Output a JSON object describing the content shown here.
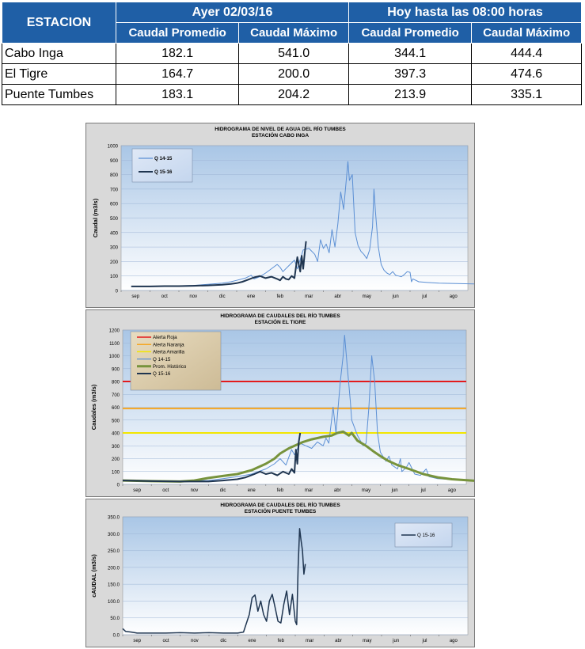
{
  "table": {
    "station_header": "ESTACION",
    "group_yesterday": "Ayer 02/03/16",
    "group_today": "Hoy hasta las 08:00 horas",
    "sub_headers": [
      "Caudal Promedio",
      "Caudal Máximo",
      "Caudal Promedio",
      "Caudal Máximo"
    ],
    "rows": [
      {
        "station": "Cabo Inga",
        "values": [
          "182.1",
          "541.0",
          "344.1",
          "444.4"
        ]
      },
      {
        "station": "El Tigre",
        "values": [
          "164.7",
          "200.0",
          "397.3",
          "474.6"
        ]
      },
      {
        "station": "Puente Tumbes",
        "values": [
          "183.1",
          "204.2",
          "213.9",
          "335.1"
        ]
      }
    ]
  },
  "colors": {
    "header_blue": "#1f5fa6",
    "plot_gradient_top": "#a9c6e6",
    "plot_gradient_bottom": "#ffffff",
    "q1415": "#5b8fd4",
    "q1516": "#1f3550",
    "historic": "#77933c",
    "alerta_roja": "#e31a1c",
    "alerta_naranja": "#f5a623",
    "alerta_amarilla": "#f2e600"
  },
  "chart_data": [
    {
      "type": "line",
      "title": "HIDROGRAMA DE NIVEL DE AGUA DEL RÍO TUMBES",
      "subtitle": "ESTACIÓN CABO INGA",
      "ylabel": "Caudal (m3/s)",
      "xlabel": "",
      "x_ticks": [
        "sep",
        "oct",
        "nov",
        "dic",
        "ene",
        "feb",
        "mar",
        "abr",
        "may",
        "jun",
        "jul",
        "ago"
      ],
      "ylim": [
        0,
        1000
      ],
      "y_ticks": [
        "0",
        "100",
        "200",
        "300",
        "400",
        "500",
        "600",
        "700",
        "800",
        "900",
        "1000"
      ],
      "grid": true,
      "legend": "top-left",
      "series": [
        {
          "name": "Q 14-15",
          "color": "#5b8fd4",
          "width": 1,
          "points": [
            [
              0.35,
              28
            ],
            [
              1,
              28
            ],
            [
              1.5,
              30
            ],
            [
              2,
              32
            ],
            [
              2.5,
              35
            ],
            [
              3,
              42
            ],
            [
              3.5,
              50
            ],
            [
              3.8,
              60
            ],
            [
              4,
              70
            ],
            [
              4.3,
              85
            ],
            [
              4.5,
              105
            ],
            [
              4.6,
              80
            ],
            [
              4.8,
              95
            ],
            [
              5,
              120
            ],
            [
              5.2,
              150
            ],
            [
              5.4,
              180
            ],
            [
              5.5,
              160
            ],
            [
              5.6,
              130
            ],
            [
              5.8,
              170
            ],
            [
              6,
              210
            ],
            [
              6.1,
              150
            ],
            [
              6.3,
              280
            ],
            [
              6.5,
              290
            ],
            [
              6.7,
              250
            ],
            [
              6.8,
              200
            ],
            [
              6.9,
              350
            ],
            [
              7,
              290
            ],
            [
              7.1,
              320
            ],
            [
              7.2,
              260
            ],
            [
              7.3,
              420
            ],
            [
              7.4,
              300
            ],
            [
              7.5,
              460
            ],
            [
              7.6,
              680
            ],
            [
              7.7,
              560
            ],
            [
              7.8,
              780
            ],
            [
              7.85,
              890
            ],
            [
              7.9,
              760
            ],
            [
              8,
              800
            ],
            [
              8.1,
              400
            ],
            [
              8.2,
              310
            ],
            [
              8.3,
              270
            ],
            [
              8.4,
              250
            ],
            [
              8.5,
              220
            ],
            [
              8.6,
              280
            ],
            [
              8.7,
              440
            ],
            [
              8.75,
              700
            ],
            [
              8.8,
              550
            ],
            [
              8.9,
              300
            ],
            [
              9,
              180
            ],
            [
              9.1,
              140
            ],
            [
              9.2,
              120
            ],
            [
              9.3,
              110
            ],
            [
              9.4,
              130
            ],
            [
              9.5,
              105
            ],
            [
              9.6,
              100
            ],
            [
              9.7,
              95
            ],
            [
              9.8,
              110
            ],
            [
              9.9,
              130
            ],
            [
              10,
              125
            ],
            [
              10.05,
              60
            ],
            [
              10.1,
              80
            ],
            [
              10.2,
              70
            ],
            [
              10.3,
              60
            ],
            [
              10.6,
              55
            ],
            [
              11,
              50
            ],
            [
              12.3,
              45
            ]
          ]
        },
        {
          "name": "Q 15-16",
          "color": "#1f3550",
          "width": 2,
          "points": [
            [
              0.35,
              28
            ],
            [
              1,
              28
            ],
            [
              1.5,
              30
            ],
            [
              2,
              30
            ],
            [
              2.5,
              32
            ],
            [
              3,
              35
            ],
            [
              3.5,
              40
            ],
            [
              3.8,
              45
            ],
            [
              4,
              50
            ],
            [
              4.2,
              60
            ],
            [
              4.4,
              75
            ],
            [
              4.6,
              90
            ],
            [
              4.8,
              100
            ],
            [
              5,
              85
            ],
            [
              5.2,
              95
            ],
            [
              5.4,
              80
            ],
            [
              5.5,
              70
            ],
            [
              5.6,
              95
            ],
            [
              5.7,
              80
            ],
            [
              5.8,
              75
            ],
            [
              5.9,
              100
            ],
            [
              6,
              85
            ],
            [
              6.1,
              230
            ],
            [
              6.2,
              130
            ],
            [
              6.25,
              240
            ],
            [
              6.3,
              150
            ],
            [
              6.35,
              250
            ],
            [
              6.4,
              340
            ]
          ]
        }
      ]
    },
    {
      "type": "line",
      "title": "HIDROGRAMA DE CAUDALES  DEL RÍO TUMBES",
      "subtitle": "ESTACIÓN EL TIGRE",
      "ylabel": "Caudales (m3/s)",
      "xlabel": "",
      "x_ticks": [
        "sep",
        "oct",
        "nov",
        "dic",
        "ene",
        "feb",
        "mar",
        "abr",
        "may",
        "jun",
        "jul",
        "ago"
      ],
      "ylim": [
        0,
        1200
      ],
      "y_ticks": [
        "0",
        "100",
        "200",
        "300",
        "400",
        "500",
        "600",
        "700",
        "800",
        "900",
        "1000",
        "1100",
        "1200"
      ],
      "grid": true,
      "legend": "top-left",
      "thresholds": [
        {
          "name": "Alerta Roja",
          "value": 800,
          "color": "#e31a1c"
        },
        {
          "name": "Alerta Naranja",
          "value": 590,
          "color": "#f5a623"
        },
        {
          "name": "Alerta Amarilla",
          "value": 400,
          "color": "#f2e600"
        }
      ],
      "series": [
        {
          "name": "Q 14-15",
          "color": "#5b8fd4",
          "width": 1,
          "points": [
            [
              0,
              28
            ],
            [
              1,
              26
            ],
            [
              2,
              25
            ],
            [
              3,
              30
            ],
            [
              3.5,
              45
            ],
            [
              4,
              60
            ],
            [
              4.5,
              80
            ],
            [
              5,
              120
            ],
            [
              5.3,
              160
            ],
            [
              5.5,
              200
            ],
            [
              5.7,
              150
            ],
            [
              5.9,
              270
            ],
            [
              6,
              230
            ],
            [
              6.2,
              320
            ],
            [
              6.4,
              300
            ],
            [
              6.6,
              280
            ],
            [
              6.8,
              330
            ],
            [
              7,
              300
            ],
            [
              7.1,
              360
            ],
            [
              7.2,
              320
            ],
            [
              7.35,
              600
            ],
            [
              7.45,
              400
            ],
            [
              7.6,
              800
            ],
            [
              7.7,
              1000
            ],
            [
              7.75,
              1160
            ],
            [
              7.85,
              900
            ],
            [
              7.95,
              650
            ],
            [
              8,
              500
            ],
            [
              8.2,
              380
            ],
            [
              8.4,
              300
            ],
            [
              8.5,
              320
            ],
            [
              8.6,
              600
            ],
            [
              8.7,
              1000
            ],
            [
              8.8,
              800
            ],
            [
              8.9,
              400
            ],
            [
              9,
              250
            ],
            [
              9.2,
              180
            ],
            [
              9.3,
              220
            ],
            [
              9.4,
              150
            ],
            [
              9.6,
              120
            ],
            [
              9.7,
              200
            ],
            [
              9.75,
              100
            ],
            [
              9.9,
              130
            ],
            [
              10,
              170
            ],
            [
              10.2,
              80
            ],
            [
              10.4,
              70
            ],
            [
              10.6,
              120
            ],
            [
              10.7,
              60
            ],
            [
              11,
              45
            ],
            [
              12.3,
              25
            ]
          ]
        },
        {
          "name": "Prom. Histórico",
          "color": "#77933c",
          "width": 3,
          "points": [
            [
              0,
              30
            ],
            [
              1,
              25
            ],
            [
              2,
              22
            ],
            [
              2.5,
              30
            ],
            [
              3,
              50
            ],
            [
              3.5,
              65
            ],
            [
              4,
              80
            ],
            [
              4.5,
              110
            ],
            [
              5,
              160
            ],
            [
              5.3,
              200
            ],
            [
              5.5,
              240
            ],
            [
              5.8,
              280
            ],
            [
              6,
              300
            ],
            [
              6.3,
              330
            ],
            [
              6.6,
              350
            ],
            [
              7,
              370
            ],
            [
              7.3,
              380
            ],
            [
              7.5,
              400
            ],
            [
              7.7,
              410
            ],
            [
              7.9,
              380
            ],
            [
              8,
              400
            ],
            [
              8.2,
              340
            ],
            [
              8.5,
              300
            ],
            [
              8.8,
              250
            ],
            [
              9,
              220
            ],
            [
              9.3,
              180
            ],
            [
              9.6,
              150
            ],
            [
              10,
              120
            ],
            [
              10.5,
              80
            ],
            [
              11,
              55
            ],
            [
              11.5,
              40
            ],
            [
              12.3,
              28
            ]
          ]
        },
        {
          "name": "Q 15-16",
          "color": "#1f3550",
          "width": 2,
          "points": [
            [
              0,
              30
            ],
            [
              1,
              25
            ],
            [
              2,
              22
            ],
            [
              3,
              22
            ],
            [
              3.5,
              30
            ],
            [
              4,
              40
            ],
            [
              4.3,
              55
            ],
            [
              4.6,
              80
            ],
            [
              4.8,
              100
            ],
            [
              5,
              80
            ],
            [
              5.2,
              90
            ],
            [
              5.4,
              70
            ],
            [
              5.6,
              100
            ],
            [
              5.8,
              80
            ],
            [
              5.9,
              120
            ],
            [
              6,
              90
            ],
            [
              6.05,
              270
            ],
            [
              6.1,
              160
            ],
            [
              6.15,
              330
            ],
            [
              6.2,
              400
            ]
          ]
        }
      ]
    },
    {
      "type": "line",
      "title": "HIDROGRAMA DE CAUDALES DEL RÍO TUMBES",
      "subtitle": "ESTACIÓN PUENTE TUMBES",
      "ylabel": "cAUDAL  (m3/s)",
      "xlabel": "",
      "x_ticks": [
        "sep",
        "oct",
        "nov",
        "dic",
        "ene",
        "feb",
        "mar",
        "abr",
        "may",
        "jun",
        "jul",
        "ago"
      ],
      "ylim": [
        0,
        350
      ],
      "y_ticks": [
        "0.0",
        "50.0",
        "100.0",
        "150.0",
        "200.0",
        "250.0",
        "300.0",
        "350.0"
      ],
      "grid": true,
      "legend": "top-right",
      "series": [
        {
          "name": "Q 15-16",
          "color": "#1f3550",
          "width": 1.5,
          "points": [
            [
              0,
              18
            ],
            [
              0.1,
              10
            ],
            [
              0.3,
              8
            ],
            [
              0.5,
              5
            ],
            [
              1,
              5
            ],
            [
              1.5,
              5
            ],
            [
              2,
              6
            ],
            [
              2.5,
              5
            ],
            [
              3,
              6
            ],
            [
              3.5,
              5
            ],
            [
              4,
              5
            ],
            [
              4.2,
              8
            ],
            [
              4.4,
              60
            ],
            [
              4.5,
              110
            ],
            [
              4.6,
              118
            ],
            [
              4.7,
              70
            ],
            [
              4.8,
              100
            ],
            [
              4.9,
              60
            ],
            [
              5,
              40
            ],
            [
              5.1,
              100
            ],
            [
              5.2,
              120
            ],
            [
              5.3,
              80
            ],
            [
              5.4,
              40
            ],
            [
              5.5,
              35
            ],
            [
              5.6,
              90
            ],
            [
              5.7,
              130
            ],
            [
              5.8,
              60
            ],
            [
              5.9,
              120
            ],
            [
              6,
              40
            ],
            [
              6.05,
              30
            ],
            [
              6.1,
              200
            ],
            [
              6.15,
              315
            ],
            [
              6.2,
              280
            ],
            [
              6.25,
              250
            ],
            [
              6.3,
              180
            ],
            [
              6.35,
              210
            ]
          ]
        }
      ]
    }
  ]
}
